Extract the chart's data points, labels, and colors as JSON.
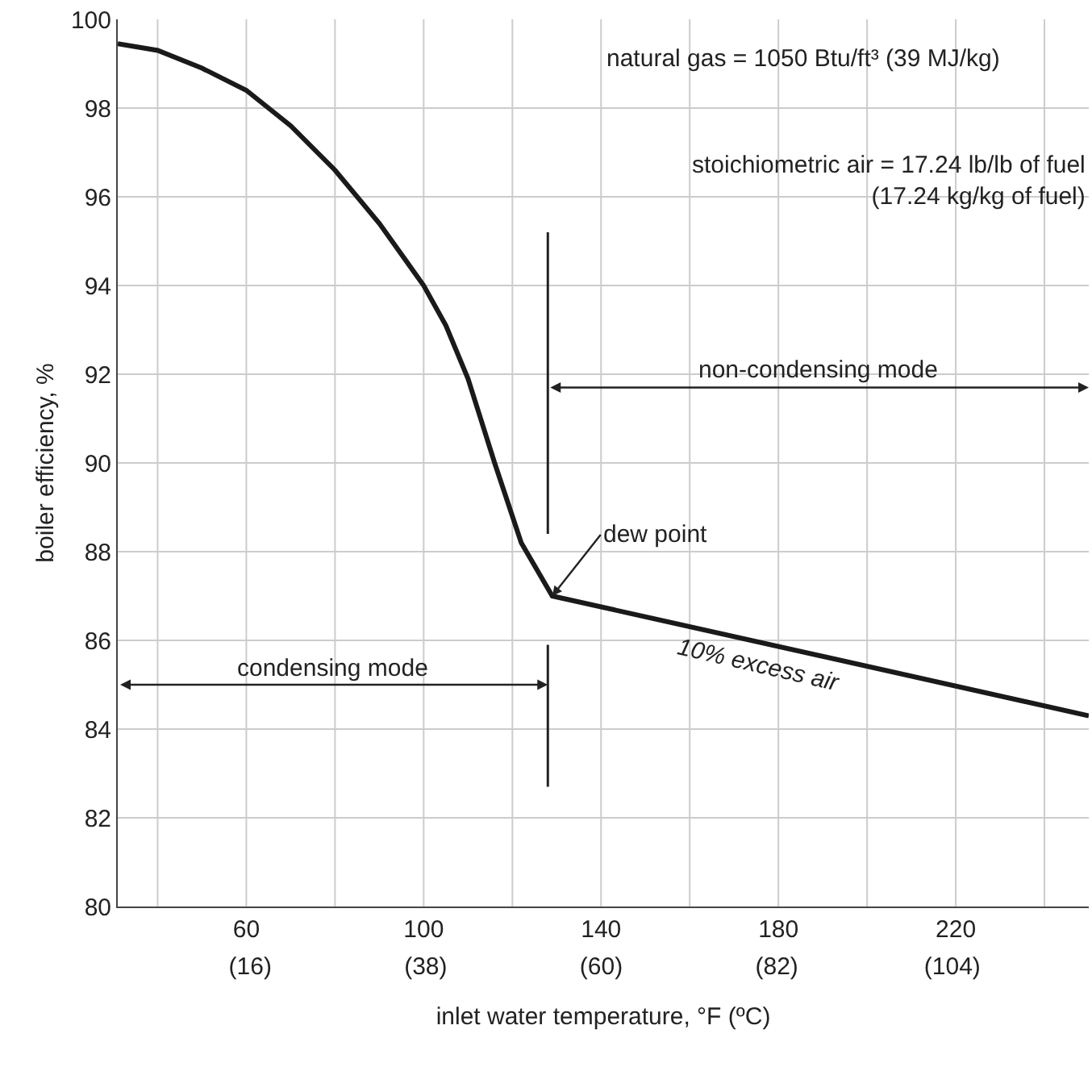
{
  "chart_data": {
    "type": "line",
    "xlabel": "inlet water temperature, °F (ºC)",
    "ylabel": "boiler efficiency, %",
    "x": [
      31,
      40,
      50,
      60,
      70,
      80,
      90,
      100,
      105,
      110,
      116,
      122,
      129,
      250
    ],
    "series": [
      {
        "color": "#1a1a1a",
        "values": [
          99.45,
          99.3,
          98.9,
          98.4,
          97.6,
          96.6,
          95.4,
          94.0,
          93.1,
          91.9,
          90.0,
          88.2,
          87.0,
          84.3
        ]
      }
    ],
    "xlim": [
      31,
      250
    ],
    "xticks": [
      60,
      100,
      140,
      180,
      220
    ],
    "x2lim": [
      -0.6,
      121.1
    ],
    "x2ticks": [
      {
        "value": 16,
        "label": "(16)"
      },
      {
        "value": 38,
        "label": "(38)"
      },
      {
        "value": 60,
        "label": "(60)"
      },
      {
        "value": 82,
        "label": "(82)"
      },
      {
        "value": 104,
        "label": "(104)"
      }
    ],
    "ylim": [
      80,
      100
    ],
    "yticks": [
      80,
      82,
      84,
      86,
      88,
      90,
      92,
      94,
      96,
      98,
      100
    ],
    "grid": true,
    "marker": "none",
    "line_style": "solid",
    "ref_lines": [
      {
        "axis": "x",
        "value": 128
      }
    ],
    "annotations": [
      "natural gas = 1050 Btu/ft³ (39 MJ/kg)",
      "stoichiometric air = 17.24 lb/lb of fuel\n(17.24 kg/kg of fuel)",
      "condensing mode",
      "non-condensing mode",
      {
        "text": "dew point",
        "x": 129,
        "y": 87
      },
      "10% excess air"
    ]
  }
}
